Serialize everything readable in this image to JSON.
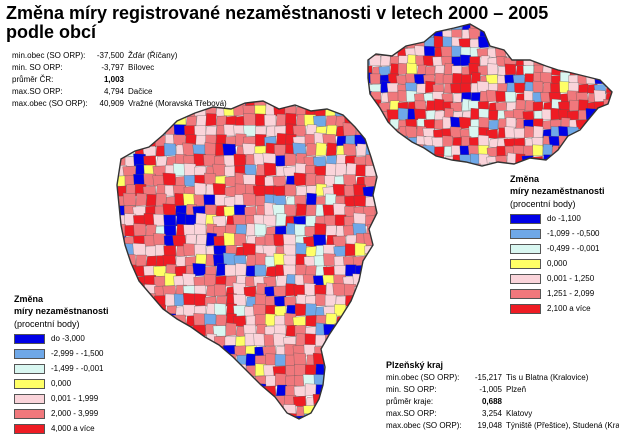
{
  "title": "Změna míry registrované nezaměstnanosti v letech 2000 – 2005 podle obcí",
  "cr_stats": [
    {
      "label": "min.obec (SO ORP):",
      "value": "-37,500",
      "name": "Žďár (Říčany)",
      "bold": false
    },
    {
      "label": "min. SO ORP:",
      "value": "-3,797",
      "name": "Bílovec",
      "bold": false
    },
    {
      "label": "průměr ČR:",
      "value": "1,003",
      "name": "",
      "bold": true
    },
    {
      "label": "max.SO ORP:",
      "value": "4,794",
      "name": "Dačice",
      "bold": false
    },
    {
      "label": "max.obec (SO ORP):",
      "value": "40,909",
      "name": "Vražné (Moravská Třebová)",
      "bold": false
    }
  ],
  "legend_cr": {
    "heading1": "Změna",
    "heading2": "míry nezaměstnanosti",
    "heading3": "(procentní body)",
    "items": [
      {
        "label": "do -1,100",
        "color": "#0000e6"
      },
      {
        "label": "-1,099 - -0,500",
        "color": "#6fa8e8"
      },
      {
        "label": "-0,499 - -0,001",
        "color": "#d9f7f1"
      },
      {
        "label": "0,000",
        "color": "#ffff66"
      },
      {
        "label": "0,001 - 1,250",
        "color": "#fad4da"
      },
      {
        "label": "1,251 - 2,099",
        "color": "#f0787c"
      },
      {
        "label": "2,100 a více",
        "color": "#ee1c24"
      }
    ]
  },
  "legend_pl": {
    "heading1": "Změna",
    "heading2": "míry nezaměstnanosti",
    "heading3": "(procentní body)",
    "items": [
      {
        "label": "do -3,000",
        "color": "#0000e6"
      },
      {
        "label": "-2,999 - -1,500",
        "color": "#6fa8e8"
      },
      {
        "label": "-1,499 - -0,001",
        "color": "#d9f7f1"
      },
      {
        "label": "0,000",
        "color": "#ffff66"
      },
      {
        "label": "0,001 - 1,999",
        "color": "#fad4da"
      },
      {
        "label": "2,000 - 3,999",
        "color": "#f0787c"
      },
      {
        "label": "4,000 a více",
        "color": "#ee1c24"
      }
    ]
  },
  "plzen": {
    "title": "Plzeňský kraj",
    "stats": [
      {
        "label": "min.obec (SO ORP):",
        "value": "-15,217",
        "name": "Tis u Blatna (Kralovice)",
        "bold": false
      },
      {
        "label": "min. SO ORP:",
        "value": "-1,005",
        "name": "Plzeň",
        "bold": false
      },
      {
        "label": "průměr kraje:",
        "value": "0,688",
        "name": "",
        "bold": true
      },
      {
        "label": "max.SO ORP:",
        "value": "3,254",
        "name": "Klatovy",
        "bold": false
      },
      {
        "label": "max.obec (SO ORP):",
        "value": "19,048",
        "name": "Týniště (Přeštice), Studená (Kralovice)",
        "bold": false
      }
    ]
  }
}
